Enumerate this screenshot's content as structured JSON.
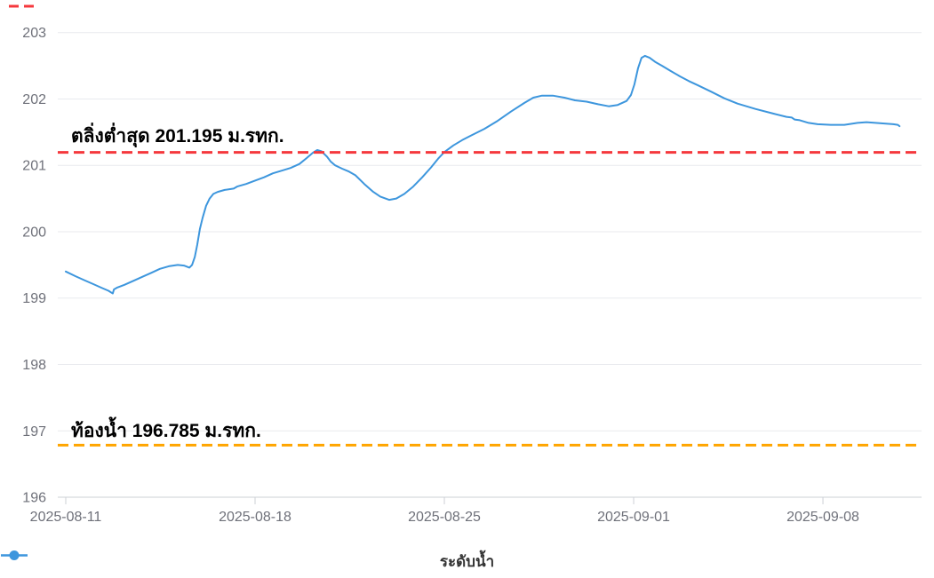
{
  "chart_data": {
    "type": "line",
    "title": "",
    "grid": true,
    "legend_position": "bottom-center",
    "series": [
      {
        "name": "ระดับน้ำ",
        "color": "#3d96dd",
        "x_unit": "days_since_2025-08-11",
        "y_unit": "ม.รทก.",
        "points": [
          [
            0.0,
            199.4
          ],
          [
            0.36,
            199.33
          ],
          [
            0.69,
            199.27
          ],
          [
            1.02,
            199.21
          ],
          [
            1.35,
            199.15
          ],
          [
            1.58,
            199.11
          ],
          [
            1.7,
            199.08
          ],
          [
            1.74,
            199.07
          ],
          [
            1.78,
            199.13
          ],
          [
            1.91,
            199.16
          ],
          [
            2.17,
            199.2
          ],
          [
            2.5,
            199.26
          ],
          [
            2.83,
            199.32
          ],
          [
            3.16,
            199.38
          ],
          [
            3.48,
            199.44
          ],
          [
            3.81,
            199.48
          ],
          [
            4.14,
            199.5
          ],
          [
            4.37,
            199.49
          ],
          [
            4.57,
            199.46
          ],
          [
            4.67,
            199.5
          ],
          [
            4.77,
            199.62
          ],
          [
            4.86,
            199.8
          ],
          [
            4.96,
            200.04
          ],
          [
            5.06,
            200.21
          ],
          [
            5.19,
            200.39
          ],
          [
            5.32,
            200.5
          ],
          [
            5.46,
            200.57
          ],
          [
            5.62,
            200.6
          ],
          [
            5.88,
            200.63
          ],
          [
            6.21,
            200.65
          ],
          [
            6.34,
            200.68
          ],
          [
            6.67,
            200.72
          ],
          [
            7.0,
            200.77
          ],
          [
            7.33,
            200.82
          ],
          [
            7.66,
            200.88
          ],
          [
            7.99,
            200.92
          ],
          [
            8.31,
            200.96
          ],
          [
            8.64,
            201.02
          ],
          [
            8.91,
            201.11
          ],
          [
            9.14,
            201.19
          ],
          [
            9.3,
            201.23
          ],
          [
            9.46,
            201.21
          ],
          [
            9.66,
            201.13
          ],
          [
            9.79,
            201.06
          ],
          [
            9.96,
            201.0
          ],
          [
            10.22,
            200.95
          ],
          [
            10.45,
            200.91
          ],
          [
            10.71,
            200.85
          ],
          [
            11.04,
            200.72
          ],
          [
            11.37,
            200.6
          ],
          [
            11.63,
            200.53
          ],
          [
            11.96,
            200.48
          ],
          [
            12.22,
            200.5
          ],
          [
            12.52,
            200.57
          ],
          [
            12.85,
            200.68
          ],
          [
            13.18,
            200.82
          ],
          [
            13.51,
            200.97
          ],
          [
            13.77,
            201.1
          ],
          [
            14.0,
            201.2
          ],
          [
            14.33,
            201.3
          ],
          [
            14.66,
            201.38
          ],
          [
            14.99,
            201.45
          ],
          [
            15.48,
            201.55
          ],
          [
            15.97,
            201.67
          ],
          [
            16.46,
            201.81
          ],
          [
            16.96,
            201.94
          ],
          [
            17.29,
            202.02
          ],
          [
            17.61,
            202.05
          ],
          [
            18.01,
            202.05
          ],
          [
            18.44,
            202.02
          ],
          [
            18.83,
            201.98
          ],
          [
            19.26,
            201.96
          ],
          [
            19.68,
            201.92
          ],
          [
            20.08,
            201.89
          ],
          [
            20.41,
            201.91
          ],
          [
            20.74,
            201.97
          ],
          [
            20.9,
            202.06
          ],
          [
            21.03,
            202.22
          ],
          [
            21.16,
            202.46
          ],
          [
            21.29,
            202.62
          ],
          [
            21.42,
            202.65
          ],
          [
            21.59,
            202.62
          ],
          [
            21.79,
            202.56
          ],
          [
            22.05,
            202.5
          ],
          [
            22.38,
            202.42
          ],
          [
            22.71,
            202.34
          ],
          [
            23.04,
            202.27
          ],
          [
            23.36,
            202.21
          ],
          [
            23.86,
            202.11
          ],
          [
            24.35,
            202.01
          ],
          [
            24.84,
            201.93
          ],
          [
            25.5,
            201.85
          ],
          [
            26.16,
            201.78
          ],
          [
            26.65,
            201.73
          ],
          [
            26.85,
            201.72
          ],
          [
            26.95,
            201.69
          ],
          [
            27.14,
            201.68
          ],
          [
            27.47,
            201.64
          ],
          [
            27.8,
            201.62
          ],
          [
            28.29,
            201.61
          ],
          [
            28.79,
            201.61
          ],
          [
            29.28,
            201.64
          ],
          [
            29.61,
            201.65
          ],
          [
            29.94,
            201.64
          ],
          [
            30.27,
            201.63
          ],
          [
            30.6,
            201.62
          ],
          [
            30.77,
            201.61
          ],
          [
            30.83,
            201.59
          ]
        ]
      }
    ],
    "x": {
      "ticks": [
        {
          "day": 0,
          "label": "2025-08-11"
        },
        {
          "day": 7,
          "label": "2025-08-18"
        },
        {
          "day": 14,
          "label": "2025-08-25"
        },
        {
          "day": 21,
          "label": "2025-09-01"
        },
        {
          "day": 28,
          "label": "2025-09-08"
        }
      ]
    },
    "y": {
      "min": 196,
      "max": 203,
      "tick_step": 1,
      "tick_labels": [
        "196",
        "197",
        "198",
        "199",
        "200",
        "201",
        "202",
        "203"
      ]
    },
    "reference_lines": [
      {
        "name": "lowest-bank-markline",
        "label": "ตลิ่งต่ำสุด 201.195 ม.รทก.",
        "value": 201.195,
        "color": "#f5383d",
        "style": "dashed"
      },
      {
        "name": "riverbed-markline",
        "label": "ท้องน้ำ 196.785 ม.รทก.",
        "value": 196.785,
        "color": "#ffa500",
        "style": "dashed"
      }
    ],
    "colors": {
      "axis_text": "#6e7079",
      "gridline": "#e9eaee",
      "axis_line": "#cdd0d6"
    }
  }
}
